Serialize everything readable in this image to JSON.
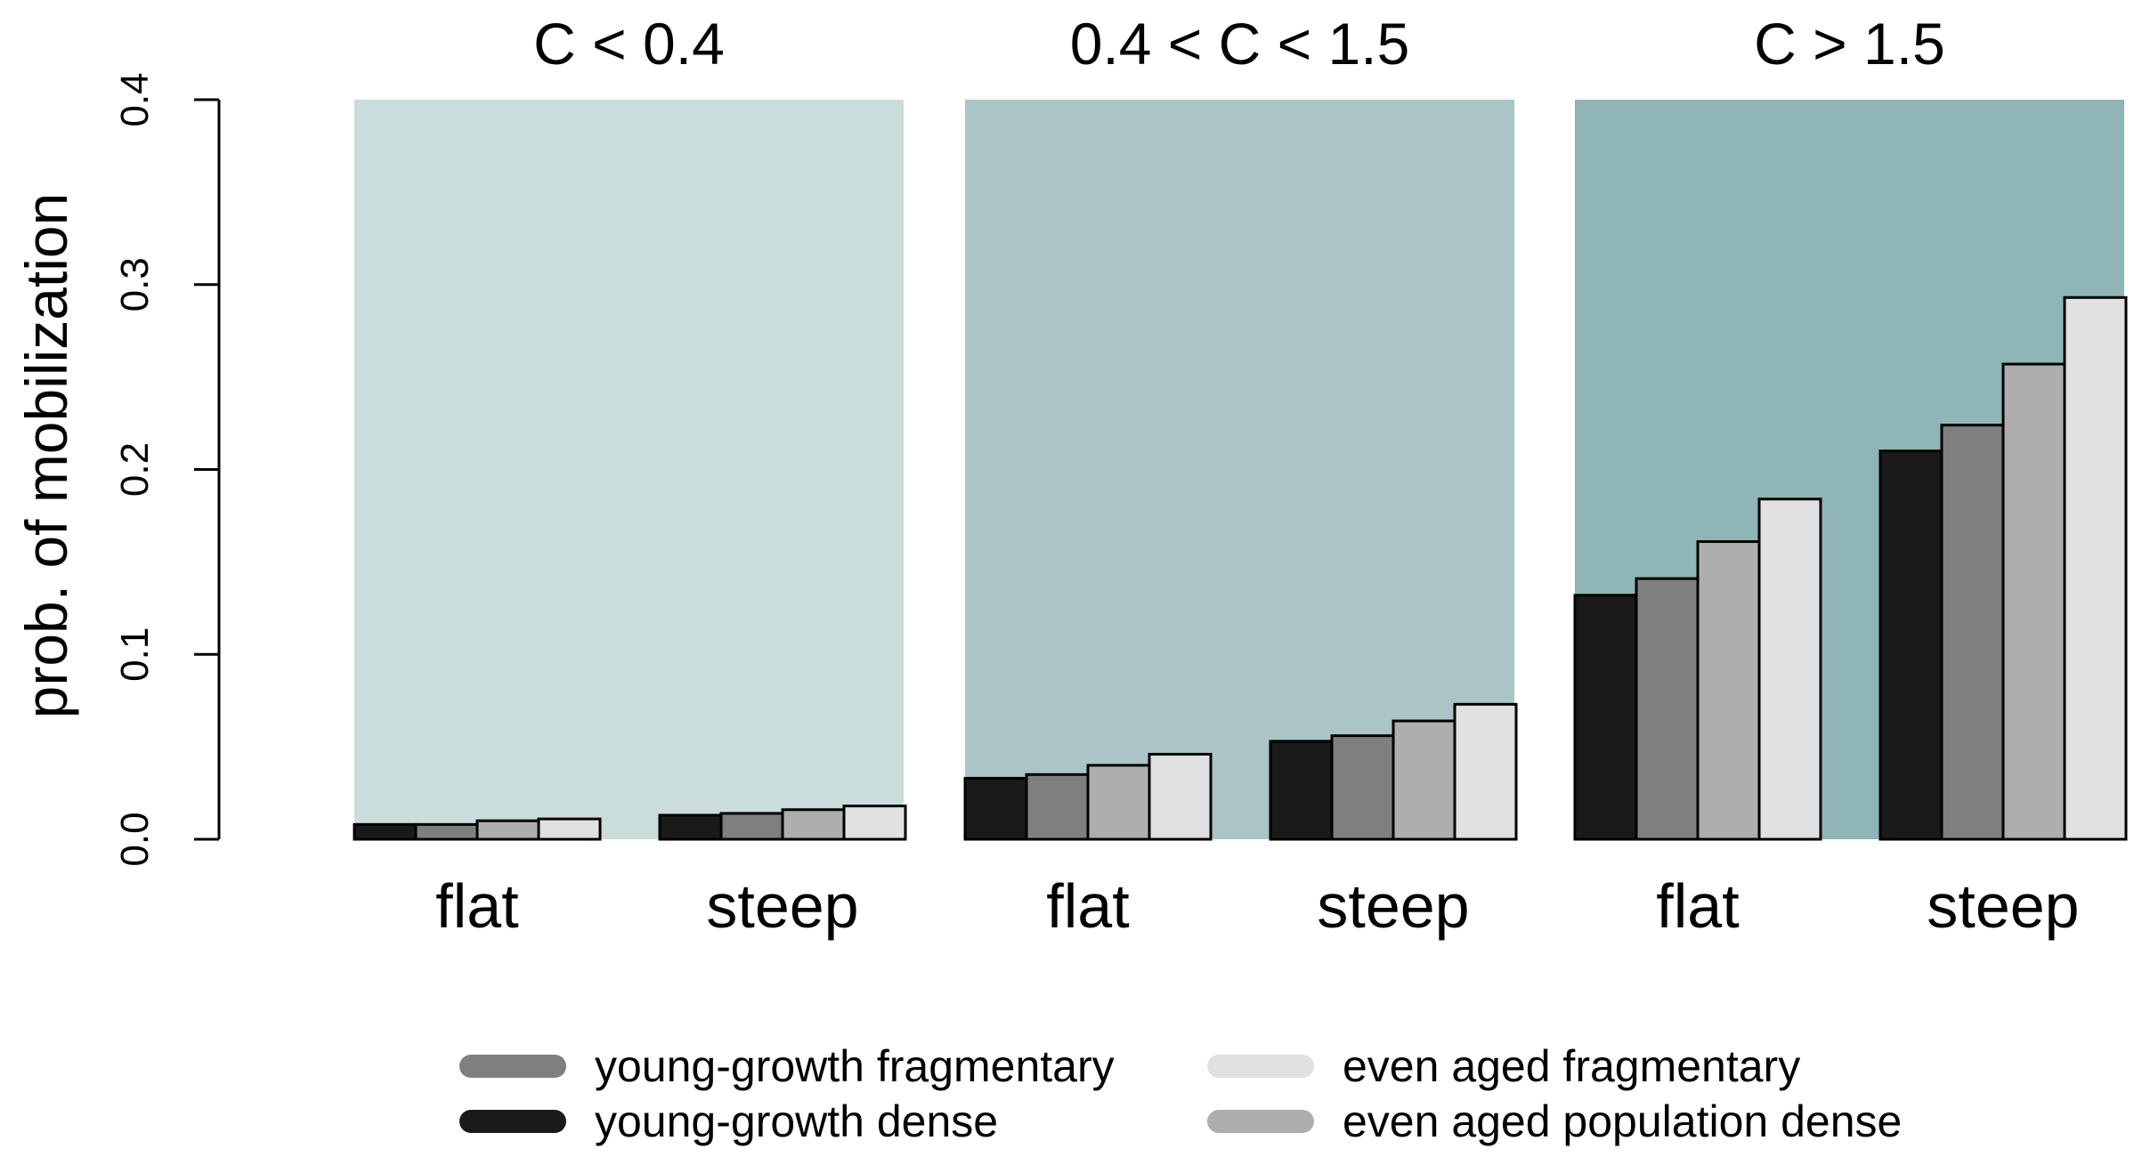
{
  "chart_data": {
    "type": "bar",
    "ylabel": "prob. of mobilization",
    "ylim": [
      0,
      0.4
    ],
    "yticks": [
      "0.0",
      "0.1",
      "0.2",
      "0.3",
      "0.4"
    ],
    "categories": [
      "flat",
      "steep"
    ],
    "series_names": [
      "young-growth dense",
      "young-growth fragmentary",
      "even aged population dense",
      "even aged fragmentary"
    ],
    "series_colors": [
      "#1a1a1a",
      "#7f7f7f",
      "#aeaeae",
      "#e1e1e1"
    ],
    "panels": [
      {
        "title": "C < 0.4",
        "background": "#cbdcdc",
        "values": {
          "flat": [
            0.008,
            0.008,
            0.01,
            0.011
          ],
          "steep": [
            0.013,
            0.014,
            0.016,
            0.018
          ]
        }
      },
      {
        "title": "0.4 < C < 1.5",
        "background": "#abc4c5",
        "values": {
          "flat": [
            0.033,
            0.035,
            0.04,
            0.046
          ],
          "steep": [
            0.053,
            0.056,
            0.064,
            0.073
          ]
        }
      },
      {
        "title": "C > 1.5",
        "background": "#8fb5b6",
        "values": {
          "flat": [
            0.132,
            0.141,
            0.161,
            0.184
          ],
          "steep": [
            0.21,
            0.224,
            0.257,
            0.293
          ]
        }
      }
    ],
    "legend": {
      "placement": "bottom",
      "entries": [
        "young-growth fragmentary",
        "even aged fragmentary",
        "young-growth dense",
        "even aged population dense"
      ]
    }
  }
}
